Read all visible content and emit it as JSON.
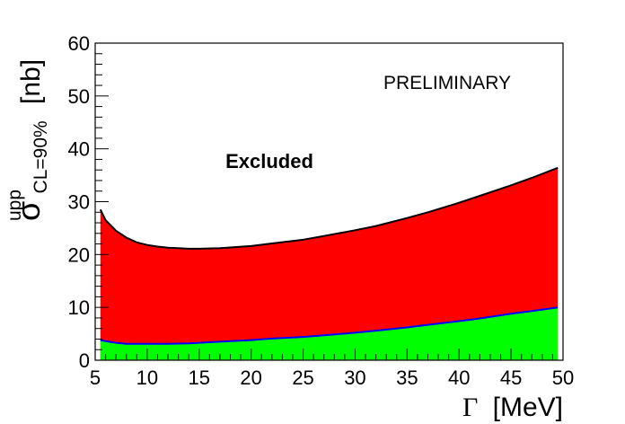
{
  "chart_data": {
    "type": "area",
    "xlabel_symbol": "Γ",
    "xlabel_unit": "[MeV]",
    "ylabel_main": "σ",
    "ylabel_sup": "upp",
    "ylabel_sub": "CL=90%",
    "ylabel_unit": "[nb]",
    "xlim": [
      5,
      50
    ],
    "ylim": [
      0,
      60
    ],
    "x_ticks": [
      5,
      10,
      15,
      20,
      25,
      30,
      35,
      40,
      45,
      50
    ],
    "y_ticks": [
      0,
      10,
      20,
      30,
      40,
      50,
      60
    ],
    "grid": false,
    "annotations": {
      "preliminary": "PRELIMINARY",
      "excluded": "Excluded"
    },
    "series": [
      {
        "role": "upper-limit",
        "fill_color": "#ff0000",
        "line_color": "#000000",
        "x": [
          5.5,
          6,
          7,
          8,
          9,
          10,
          11,
          12,
          13,
          14,
          15,
          17,
          20,
          22,
          25,
          27,
          30,
          32,
          35,
          37,
          40,
          42,
          45,
          47,
          49.5
        ],
        "y": [
          28.5,
          26.5,
          24.5,
          23.2,
          22.3,
          21.8,
          21.5,
          21.3,
          21.2,
          21.1,
          21.1,
          21.2,
          21.6,
          22.1,
          22.8,
          23.5,
          24.6,
          25.4,
          26.9,
          28.0,
          29.8,
          31.1,
          33.1,
          34.5,
          36.4
        ]
      },
      {
        "role": "lower-band",
        "fill_color": "#00ff00",
        "line_color": "#0000ff",
        "x": [
          5.5,
          6,
          7,
          8,
          9,
          10,
          12,
          14,
          15,
          17,
          20,
          22,
          25,
          27,
          30,
          32,
          35,
          37,
          40,
          42,
          45,
          47,
          49.5
        ],
        "y": [
          3.8,
          3.6,
          3.3,
          3.1,
          3.1,
          3.1,
          3.1,
          3.2,
          3.3,
          3.5,
          3.8,
          4.1,
          4.4,
          4.7,
          5.2,
          5.6,
          6.2,
          6.7,
          7.4,
          7.9,
          8.8,
          9.3,
          10.0
        ]
      }
    ]
  }
}
